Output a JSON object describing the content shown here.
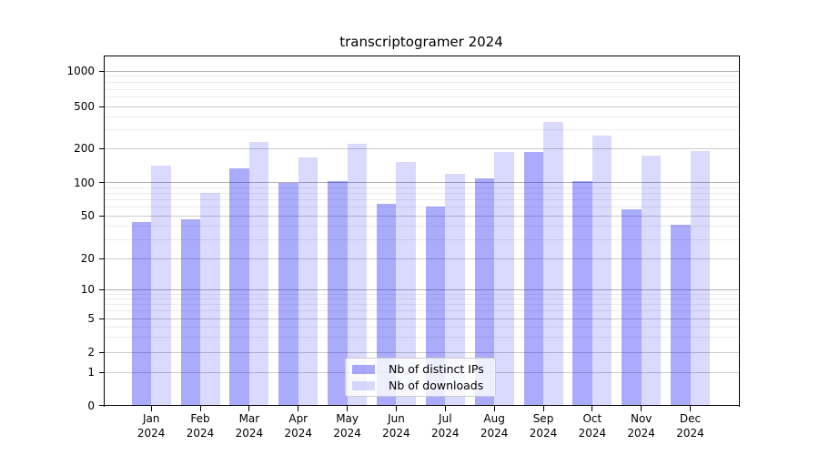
{
  "title": "transcriptogramer 2024",
  "colors": {
    "ips_fill": "rgba(10,10,245,0.34)",
    "downloads_fill": "rgba(10,10,245,0.15)",
    "ips_hex": "#a9a9f9",
    "downloads_hex": "#d9d9f9",
    "grid_decade": "#b0b0b0",
    "grid_major": "#cbcbcb",
    "grid_minor": "#ececec",
    "axis": "#000000"
  },
  "legend": {
    "items": [
      {
        "label": "Nb of distinct IPs",
        "key": "ips"
      },
      {
        "label": "Nb of downloads",
        "key": "downloads"
      }
    ]
  },
  "y_axis": {
    "ticks": [
      "0",
      "1",
      "2",
      "5",
      "10",
      "20",
      "50",
      "100",
      "200",
      "500",
      "1000"
    ]
  },
  "x_axis": {
    "months": [
      "Jan",
      "Feb",
      "Mar",
      "Apr",
      "May",
      "Jun",
      "Jul",
      "Aug",
      "Sep",
      "Oct",
      "Nov",
      "Dec"
    ],
    "year": "2024"
  },
  "chart_data": {
    "type": "bar",
    "title": "transcriptogramer 2024",
    "categories": [
      "Jan 2024",
      "Feb 2024",
      "Mar 2024",
      "Apr 2024",
      "May 2024",
      "Jun 2024",
      "Jul 2024",
      "Aug 2024",
      "Sep 2024",
      "Oct 2024",
      "Nov 2024",
      "Dec 2024"
    ],
    "series": [
      {
        "name": "Nb of distinct IPs",
        "values": [
          44,
          46,
          133,
          100,
          102,
          64,
          61,
          108,
          185,
          102,
          57,
          41
        ]
      },
      {
        "name": "Nb of downloads",
        "values": [
          140,
          81,
          230,
          166,
          220,
          153,
          119,
          185,
          355,
          265,
          174,
          190
        ]
      }
    ],
    "yscale": "symlog",
    "yticks": [
      0,
      1,
      2,
      5,
      10,
      20,
      50,
      100,
      200,
      500,
      1000
    ],
    "minor_gridlines": [
      3,
      4,
      6,
      7,
      8,
      9,
      30,
      40,
      60,
      70,
      80,
      90,
      300,
      400,
      600,
      700,
      800,
      900
    ],
    "grid": "both",
    "legend_position": "lower center"
  }
}
